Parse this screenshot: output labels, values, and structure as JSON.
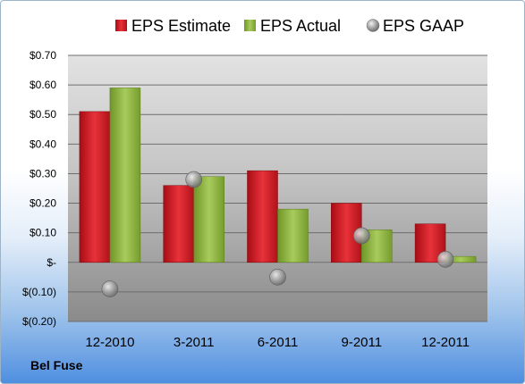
{
  "chart_data": {
    "type": "bar",
    "categories": [
      "12-2010",
      "3-2011",
      "6-2011",
      "9-2011",
      "12-2011"
    ],
    "series": [
      {
        "name": "EPS Estimate",
        "kind": "bar",
        "color": "#c8141e",
        "values": [
          0.51,
          0.26,
          0.31,
          0.2,
          0.13
        ]
      },
      {
        "name": "EPS Actual",
        "kind": "bar",
        "color": "#8cb43c",
        "values": [
          0.59,
          0.29,
          0.18,
          0.11,
          0.02
        ]
      },
      {
        "name": "EPS GAAP",
        "kind": "marker",
        "color": "#a8a8a8",
        "values": [
          -0.09,
          0.28,
          -0.05,
          0.09,
          0.01
        ]
      }
    ],
    "ylim": [
      -0.2,
      0.7
    ],
    "yticks": [
      0.7,
      0.6,
      0.5,
      0.4,
      0.3,
      0.2,
      0.1,
      0,
      -0.1,
      -0.2
    ],
    "ytick_labels": [
      "$0.70",
      "$0.60",
      "$0.50",
      "$0.40",
      "$0.30",
      "$0.20",
      "$0.10",
      "$-",
      "$(0.10)",
      "$(0.20)"
    ],
    "grid": true,
    "legend_position": "top"
  },
  "company": "Bel Fuse"
}
